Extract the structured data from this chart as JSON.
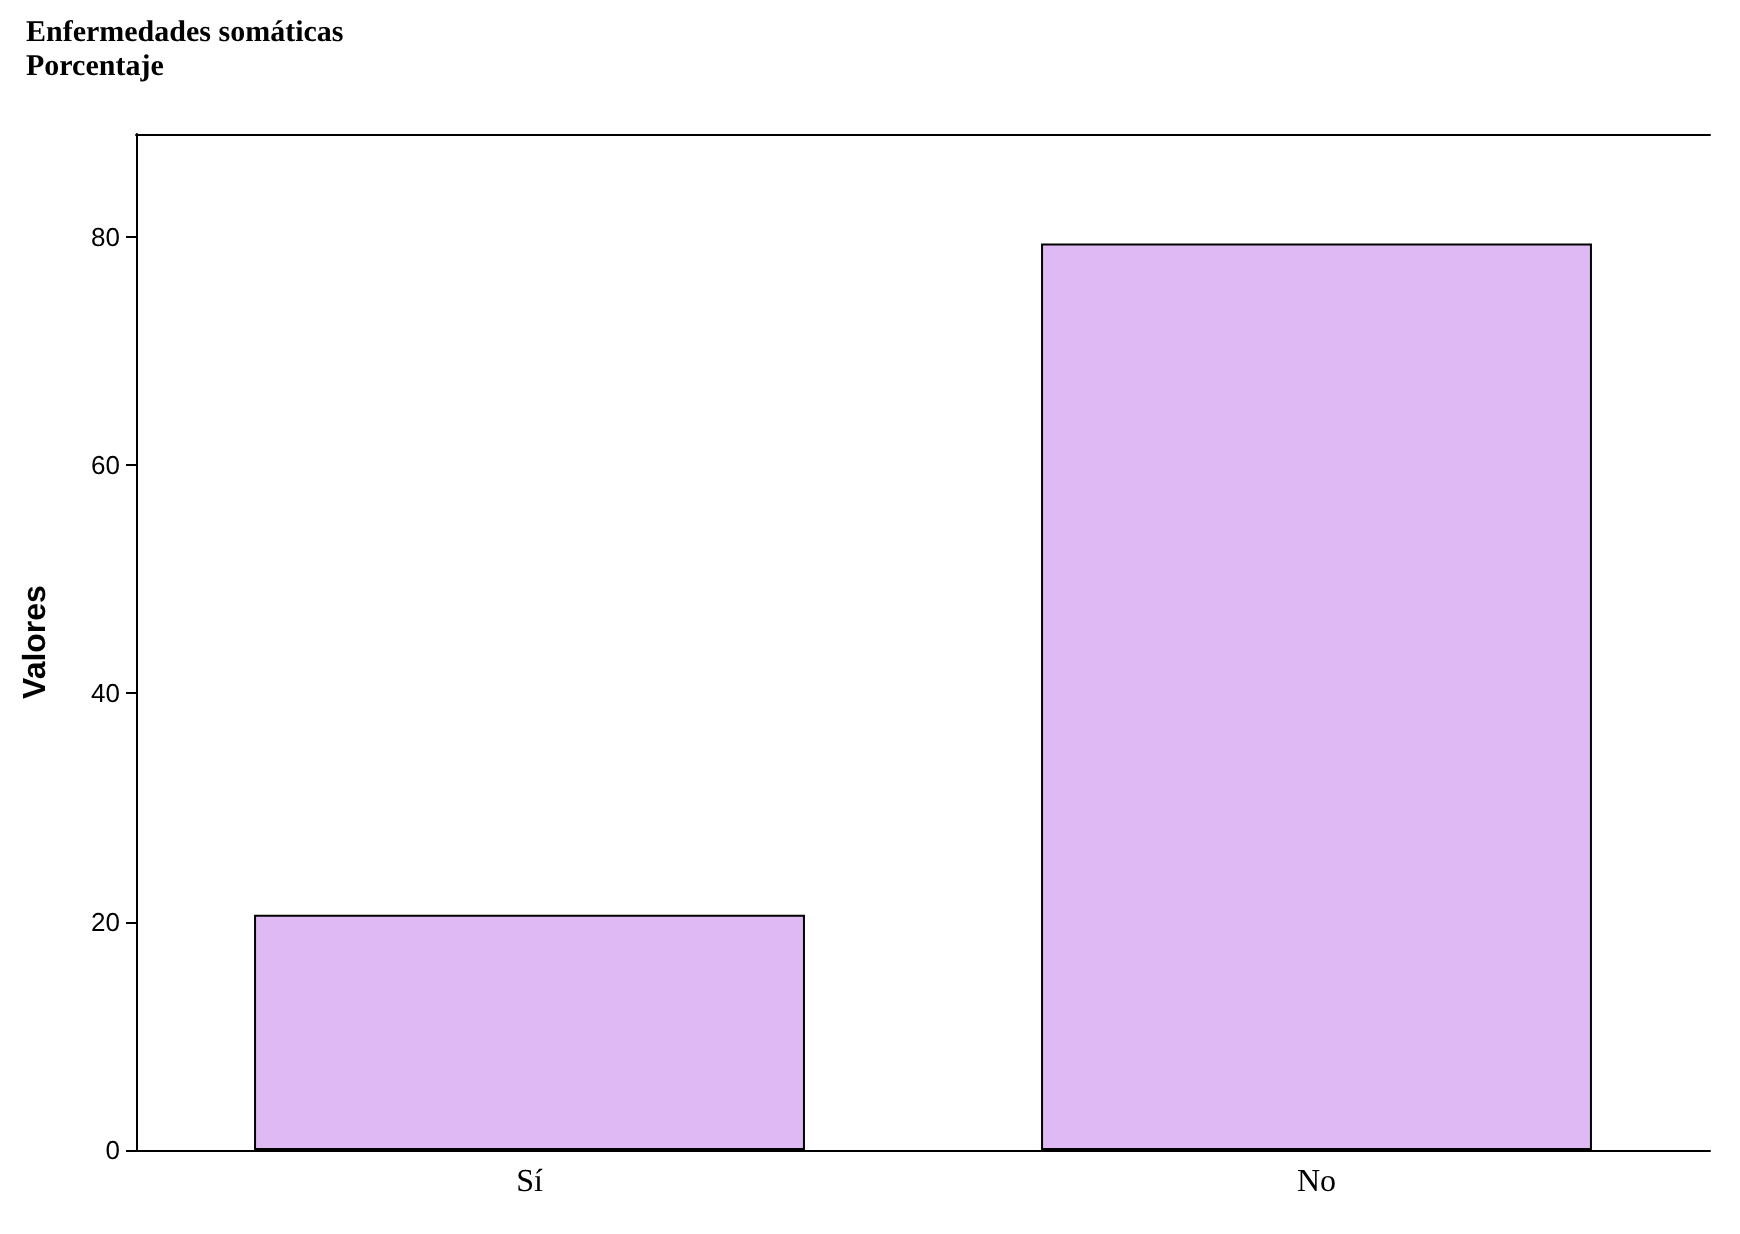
{
  "chart_data": {
    "type": "bar",
    "title": "Enfermedades somáticas",
    "subtitle": "Porcentaje",
    "ylabel": "Valores",
    "categories": [
      "Sí",
      "No"
    ],
    "values": [
      20.6,
      79.4
    ],
    "color": "#dfb9f3",
    "ylim": [
      0,
      89
    ],
    "yticks": [
      0,
      20,
      40,
      60,
      80
    ]
  }
}
